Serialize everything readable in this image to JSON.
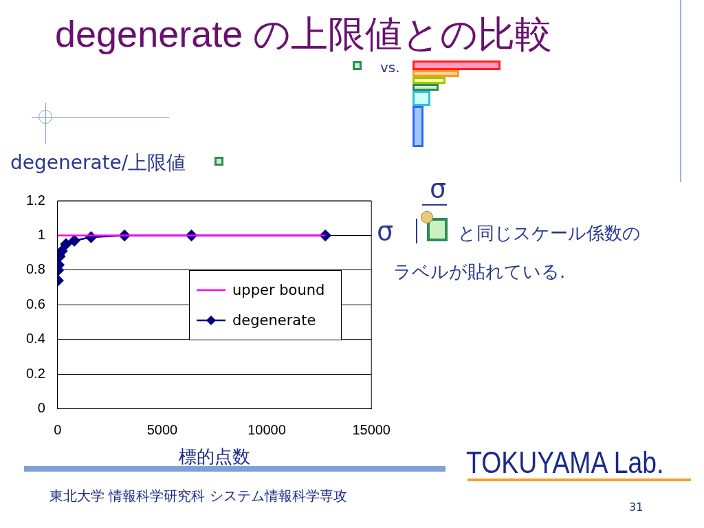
{
  "chart_data": {
    "type": "line",
    "title": "degenerate の上限値との比較",
    "xlabel": "標的点数",
    "ylabel": "degenerate/上限値",
    "series": [
      {
        "name": "upper bound",
        "color": "#ff00ff",
        "x": [
          0,
          12800
        ],
        "values": [
          1,
          1
        ],
        "marker": "none"
      },
      {
        "name": "degenerate",
        "color": "#000080",
        "x": [
          12.5,
          25,
          50,
          100,
          200,
          400,
          800,
          1600,
          3200,
          6400,
          12800
        ],
        "values": [
          0.74,
          0.8,
          0.83,
          0.88,
          0.91,
          0.95,
          0.97,
          0.99,
          1,
          1,
          1
        ],
        "marker": "diamond"
      }
    ],
    "xlim": [
      0,
      15000
    ],
    "xticks": [
      0,
      5000,
      10000,
      15000
    ],
    "ylim": [
      0,
      1.2
    ],
    "yticks": [
      0,
      0.2,
      0.4,
      0.6,
      0.8,
      1,
      1.2
    ],
    "grid": "y",
    "legend": "right",
    "annotations": [
      "vs.",
      "σ",
      "σ",
      "と同じスケール係数の",
      "ラベルが貼れている.",
      "TOKUYAMA Lab.",
      "東北大学 情報科学研究科 システム情報科学専攻",
      "31"
    ]
  }
}
